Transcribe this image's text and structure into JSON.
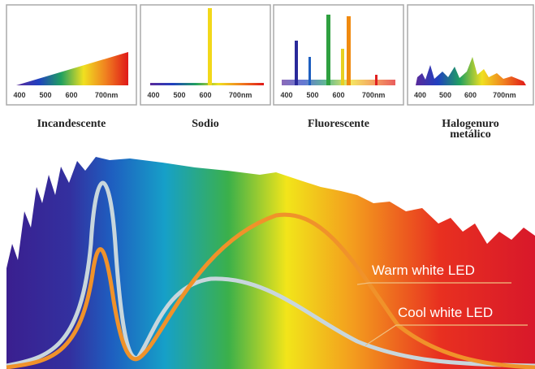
{
  "panels": [
    {
      "name": [
        "Incandescente"
      ],
      "ticks": [
        "400",
        "500",
        "600",
        "700nm"
      ]
    },
    {
      "name": [
        "Sodio"
      ],
      "ticks": [
        "400",
        "500",
        "600",
        "700nm"
      ]
    },
    {
      "name": [
        "Fluorescente"
      ],
      "ticks": [
        "400",
        "500",
        "600",
        "700nm"
      ]
    },
    {
      "name": [
        "Halogenuro",
        "metálico"
      ],
      "ticks": [
        "400",
        "500",
        "600",
        "700nm"
      ]
    }
  ],
  "curves": {
    "warm": "Warm white LED",
    "cool": "Cool white LED"
  }
}
